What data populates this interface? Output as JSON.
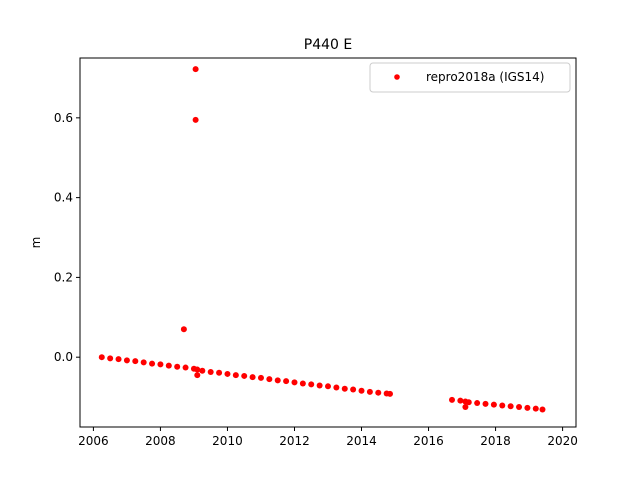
{
  "chart_data": {
    "type": "scatter",
    "title": "P440 E",
    "xlabel": "",
    "ylabel": "m",
    "xlim": [
      2005.6,
      2020.4
    ],
    "ylim": [
      -0.175,
      0.75
    ],
    "grid": false,
    "legend_position": "top-right",
    "x_ticks": [
      2006,
      2008,
      2010,
      2012,
      2014,
      2016,
      2018,
      2020
    ],
    "y_ticks": [
      0.0,
      0.2,
      0.4,
      0.6
    ],
    "x_tick_labels": [
      "2006",
      "2008",
      "2010",
      "2012",
      "2014",
      "2016",
      "2018",
      "2020"
    ],
    "y_tick_labels": [
      "0.0",
      "0.2",
      "0.4",
      "0.6"
    ],
    "series": [
      {
        "name": "repro2018a (IGS14)",
        "color": "#ff0000",
        "marker": "circle",
        "x": [
          2006.25,
          2006.5,
          2006.75,
          2007.0,
          2007.25,
          2007.5,
          2007.75,
          2008.0,
          2008.25,
          2008.5,
          2008.75,
          2009.0,
          2009.1,
          2009.25,
          2009.5,
          2009.75,
          2010.0,
          2010.25,
          2010.5,
          2010.75,
          2011.0,
          2011.25,
          2011.5,
          2011.75,
          2012.0,
          2012.25,
          2012.5,
          2012.75,
          2013.0,
          2013.25,
          2013.5,
          2013.75,
          2014.0,
          2014.25,
          2014.5,
          2014.75,
          2014.85,
          2016.7,
          2016.95,
          2017.1,
          2017.2,
          2017.45,
          2017.7,
          2017.95,
          2018.2,
          2018.45,
          2018.7,
          2018.95,
          2019.2,
          2019.4,
          2008.7,
          2009.05,
          2009.05,
          2009.1,
          2017.1
        ],
        "y": [
          0.0,
          -0.003,
          -0.005,
          -0.008,
          -0.01,
          -0.013,
          -0.016,
          -0.018,
          -0.021,
          -0.024,
          -0.026,
          -0.029,
          -0.031,
          -0.034,
          -0.037,
          -0.039,
          -0.042,
          -0.045,
          -0.047,
          -0.05,
          -0.052,
          -0.055,
          -0.058,
          -0.06,
          -0.063,
          -0.066,
          -0.068,
          -0.071,
          -0.073,
          -0.076,
          -0.079,
          -0.081,
          -0.084,
          -0.087,
          -0.089,
          -0.091,
          -0.092,
          -0.107,
          -0.109,
          -0.111,
          -0.113,
          -0.115,
          -0.117,
          -0.119,
          -0.121,
          -0.123,
          -0.125,
          -0.127,
          -0.129,
          -0.131,
          0.07,
          0.722,
          0.595,
          -0.045,
          -0.125
        ]
      }
    ]
  }
}
